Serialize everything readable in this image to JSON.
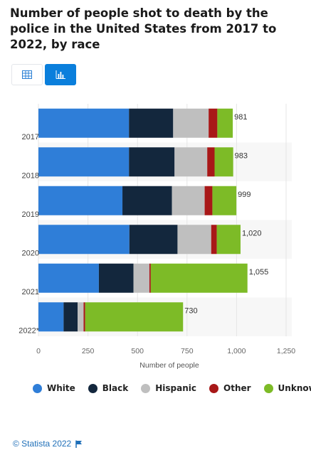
{
  "title": "Number of people shot to death by the police in the United States from 2017 to 2022, by race",
  "toggles": {
    "table_icon": "table-icon",
    "chart_icon": "bar-chart-icon"
  },
  "chart_data": {
    "type": "bar",
    "orientation": "horizontal",
    "stacked": true,
    "categories": [
      "2017",
      "2018",
      "2019",
      "2020",
      "2021",
      "2022*"
    ],
    "series": [
      {
        "name": "White",
        "color": "#2f7ed8",
        "values": [
          457,
          457,
          424,
          459,
          305,
          127
        ]
      },
      {
        "name": "Black",
        "color": "#13273d",
        "values": [
          223,
          230,
          250,
          243,
          175,
          71
        ]
      },
      {
        "name": "Hispanic",
        "color": "#bfbfbf",
        "values": [
          179,
          165,
          165,
          170,
          80,
          30
        ]
      },
      {
        "name": "Other",
        "color": "#a81818",
        "values": [
          44,
          37,
          39,
          28,
          7,
          8
        ]
      },
      {
        "name": "Unknown",
        "color": "#7dbb27",
        "values": [
          78,
          94,
          121,
          120,
          488,
          494
        ]
      }
    ],
    "totals": [
      "981",
      "983",
      "999",
      "1,020",
      "1,055",
      "730"
    ],
    "xlabel": "Number of people",
    "ylabel": "",
    "xlim": [
      0,
      1250
    ],
    "xticks": [
      0,
      250,
      500,
      750,
      1000,
      1250
    ],
    "xtick_labels": [
      "0",
      "250",
      "500",
      "750",
      "1,000",
      "1,250"
    ],
    "grid": true,
    "legend_position": "bottom"
  },
  "footer": {
    "text": "© Statista 2022",
    "flag_icon": "flag-icon"
  }
}
